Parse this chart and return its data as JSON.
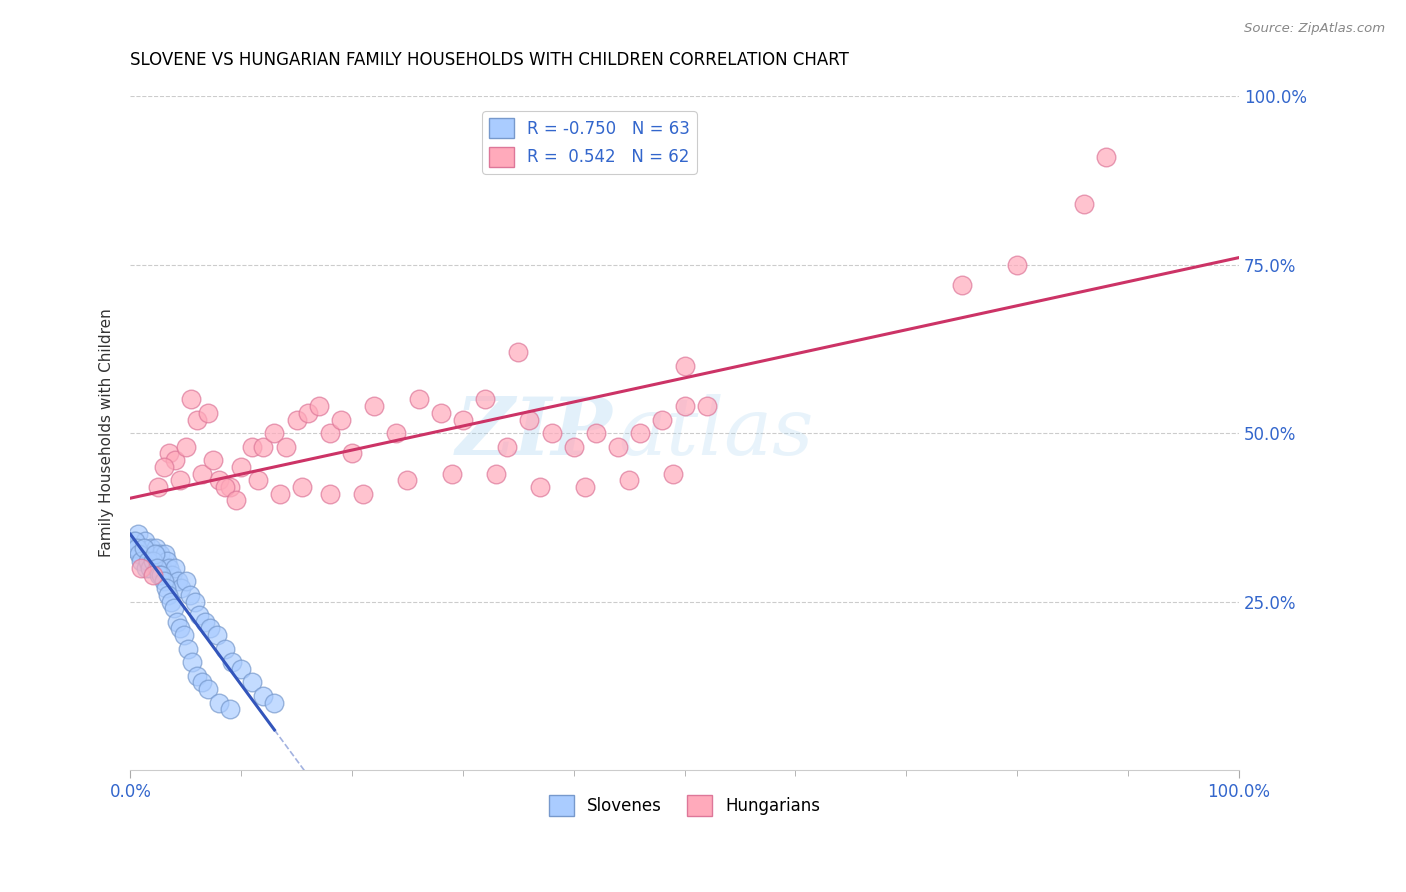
{
  "title": "SLOVENE VS HUNGARIAN FAMILY HOUSEHOLDS WITH CHILDREN CORRELATION CHART",
  "source": "Source: ZipAtlas.com",
  "ylabel": "Family Households with Children",
  "watermark_zip": "ZIP",
  "watermark_atlas": "atlas",
  "legend_entries": [
    {
      "label": "Slovenes",
      "R": -0.75,
      "N": 63,
      "color": "#aaccff",
      "edge": "#7799cc"
    },
    {
      "label": "Hungarians",
      "R": 0.542,
      "N": 62,
      "color": "#ffaabb",
      "edge": "#dd7799"
    }
  ],
  "slovene_x": [
    0.3,
    0.5,
    0.7,
    0.9,
    1.1,
    1.3,
    1.5,
    1.7,
    1.9,
    2.1,
    2.3,
    2.5,
    2.7,
    2.9,
    3.1,
    3.3,
    3.5,
    3.8,
    4.0,
    4.3,
    4.6,
    5.0,
    5.4,
    5.8,
    6.2,
    6.7,
    7.2,
    7.8,
    8.5,
    9.2,
    10.0,
    11.0,
    12.0,
    0.2,
    0.4,
    0.6,
    0.8,
    1.0,
    1.2,
    1.4,
    1.6,
    1.8,
    2.0,
    2.2,
    2.4,
    2.6,
    2.8,
    3.0,
    3.2,
    3.4,
    3.7,
    3.9,
    4.2,
    4.5,
    4.8,
    5.2,
    5.6,
    6.0,
    6.5,
    7.0,
    8.0,
    9.0,
    13.0
  ],
  "slovene_y": [
    34,
    33,
    35,
    32,
    33,
    34,
    31,
    32,
    33,
    32,
    33,
    31,
    32,
    30,
    32,
    31,
    30,
    29,
    30,
    28,
    27,
    28,
    26,
    25,
    23,
    22,
    21,
    20,
    18,
    16,
    15,
    13,
    11,
    33,
    34,
    33,
    32,
    31,
    33,
    30,
    31,
    30,
    31,
    32,
    30,
    29,
    29,
    28,
    27,
    26,
    25,
    24,
    22,
    21,
    20,
    18,
    16,
    14,
    13,
    12,
    10,
    9,
    10
  ],
  "hungarian_x": [
    1.0,
    2.0,
    3.5,
    4.0,
    5.0,
    5.5,
    6.0,
    7.0,
    8.0,
    9.0,
    10.0,
    11.0,
    12.0,
    13.0,
    14.0,
    15.0,
    16.0,
    17.0,
    18.0,
    19.0,
    20.0,
    22.0,
    24.0,
    26.0,
    28.0,
    30.0,
    32.0,
    34.0,
    36.0,
    38.0,
    40.0,
    42.0,
    44.0,
    46.0,
    48.0,
    50.0,
    52.0,
    2.5,
    3.0,
    4.5,
    6.5,
    7.5,
    8.5,
    9.5,
    11.5,
    13.5,
    15.5,
    18.0,
    21.0,
    25.0,
    29.0,
    33.0,
    37.0,
    41.0,
    45.0,
    49.0,
    75.0,
    80.0,
    86.0,
    88.0,
    50.0,
    35.0
  ],
  "hungarian_y": [
    30,
    29,
    47,
    46,
    48,
    55,
    52,
    53,
    43,
    42,
    45,
    48,
    48,
    50,
    48,
    52,
    53,
    54,
    50,
    52,
    47,
    54,
    50,
    55,
    53,
    52,
    55,
    48,
    52,
    50,
    48,
    50,
    48,
    50,
    52,
    54,
    54,
    42,
    45,
    43,
    44,
    46,
    42,
    40,
    43,
    41,
    42,
    41,
    41,
    43,
    44,
    44,
    42,
    42,
    43,
    44,
    72,
    75,
    84,
    91,
    60,
    62
  ],
  "bg_color": "#ffffff",
  "grid_color": "#cccccc",
  "slovene_line_color": "#3355bb",
  "hungarian_line_color": "#cc3366",
  "xlim": [
    0,
    100
  ],
  "ylim": [
    0,
    100
  ],
  "ytick_positions": [
    25,
    50,
    75,
    100
  ],
  "ytick_labels": [
    "25.0%",
    "50.0%",
    "75.0%",
    "100.0%"
  ],
  "xtick_left_label": "0.0%",
  "xtick_right_label": "100.0%",
  "minor_xtick_positions": [
    10,
    20,
    30,
    40,
    50,
    60,
    70,
    80,
    90
  ]
}
